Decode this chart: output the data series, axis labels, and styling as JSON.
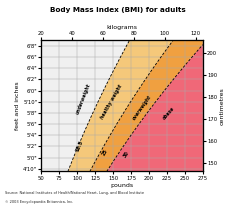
{
  "title": "Body Mass Index (BMI) for adults",
  "xlabel_bottom": "pounds",
  "xlabel_top": "kilograms",
  "ylabel_left": "feet and inches",
  "ylabel_right": "centimetres",
  "pounds_ticks": [
    50,
    75,
    100,
    125,
    150,
    175,
    200,
    225,
    250,
    275
  ],
  "kg_ticks": [
    20,
    40,
    60,
    80,
    100,
    120
  ],
  "height_ticks_ft": [
    "4'10\"",
    "5'0\"",
    "5'2\"",
    "5'4\"",
    "5'6\"",
    "5'8\"",
    "5'10\"",
    "6'0\"",
    "6'2\"",
    "6'4\"",
    "6'6\"",
    "6'8\""
  ],
  "height_ticks_cm": [
    150,
    160,
    170,
    180,
    190,
    200
  ],
  "height_inches": [
    58,
    60,
    62,
    64,
    66,
    68,
    70,
    72,
    74,
    76,
    78,
    80
  ],
  "bmi_lines": [
    18.5,
    25,
    30
  ],
  "zone_colors": [
    "#f0f0f0",
    "#f5c87a",
    "#f0a040",
    "#f06878"
  ],
  "grid_color": "#aaaaaa",
  "bg_color": "#d8d8d8",
  "source_text": "Source: National Institutes of Health/National Heart, Lung, and Blood Institute",
  "copyright_text": "© 2003 Encyclopaedia Britannica, Inc.",
  "lbs_min": 50,
  "lbs_max": 275,
  "inch_min": 57.5,
  "inch_max": 81
}
